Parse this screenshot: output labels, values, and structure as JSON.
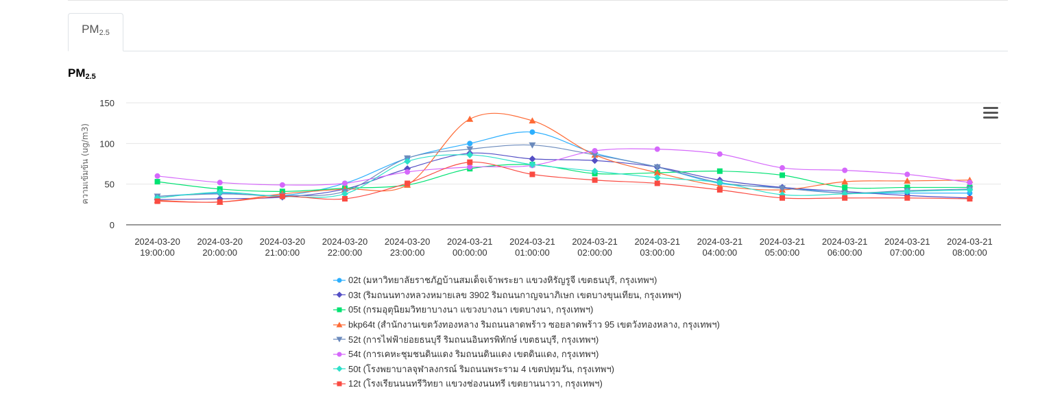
{
  "tabs": [
    {
      "label": "PM",
      "sub": "2.5"
    }
  ],
  "chart_title": {
    "label": "PM",
    "sub": "2.5"
  },
  "chart_data": {
    "type": "line",
    "title": "PM2.5",
    "ylabel": "ความเข้มข้น (ug/m3)",
    "ylim": [
      0,
      150
    ],
    "yticks": [
      0,
      50,
      100,
      150
    ],
    "grid": true,
    "legend": "bottom",
    "categories": [
      [
        "2024-03-20",
        "19:00:00"
      ],
      [
        "2024-03-20",
        "20:00:00"
      ],
      [
        "2024-03-20",
        "21:00:00"
      ],
      [
        "2024-03-20",
        "22:00:00"
      ],
      [
        "2024-03-20",
        "23:00:00"
      ],
      [
        "2024-03-21",
        "00:00:00"
      ],
      [
        "2024-03-21",
        "01:00:00"
      ],
      [
        "2024-03-21",
        "02:00:00"
      ],
      [
        "2024-03-21",
        "03:00:00"
      ],
      [
        "2024-03-21",
        "04:00:00"
      ],
      [
        "2024-03-21",
        "05:00:00"
      ],
      [
        "2024-03-21",
        "06:00:00"
      ],
      [
        "2024-03-21",
        "07:00:00"
      ],
      [
        "2024-03-21",
        "08:00:00"
      ]
    ],
    "series": [
      {
        "name": "02t (มหาวิทยาลัยราชภัฏบ้านสมเด็จเจ้าพระยา แขวงหิรัญรูจี เขตธนบุรี, กรุงเทพฯ)",
        "color": "#2caffe",
        "marker": "circle",
        "values": [
          35,
          39,
          36,
          51,
          82,
          100,
          114,
          88,
          71,
          51,
          46,
          39,
          39,
          39
        ]
      },
      {
        "name": "03t (ริมถนนทางหลวงหมายเลข 3902 ริมถนนกาญจนาภิเษก เขตบางขุนเทียน, กรุงเทพฯ)",
        "color": "#544fc5",
        "marker": "diamond",
        "values": [
          31,
          32,
          34,
          44,
          69,
          88,
          81,
          79,
          71,
          55,
          46,
          41,
          36,
          33
        ]
      },
      {
        "name": "05t (กรมอุตุนิยมวิทยาบางนา แขวงบางนา เขตบางนา, กรุงเทพฯ)",
        "color": "#00e272",
        "marker": "square",
        "values": [
          53,
          44,
          41,
          45,
          49,
          69,
          74,
          63,
          64,
          66,
          61,
          46,
          46,
          46
        ]
      },
      {
        "name": "bkp64t (สำนักงานเขตวังทองหลาง ริมถนนลาดพร้าว ซอยลาดพร้าว 95 เขตวังทองหลาง, กรุงเทพฯ)",
        "color": "#fe6a35",
        "marker": "triangle",
        "values": [
          30,
          28,
          38,
          44,
          49,
          130,
          128,
          86,
          64,
          48,
          43,
          53,
          54,
          55
        ]
      },
      {
        "name": "52t (การไฟฟ้าย่อยธนบุรี ริมถนนอินทรพิทักษ์ เขตธนบุรี, กรุงเทพฯ)",
        "color": "#6b8abc",
        "marker": "triangle-down",
        "values": [
          35,
          38,
          36,
          41,
          82,
          93,
          98,
          86,
          71,
          52,
          45,
          39,
          42,
          44
        ]
      },
      {
        "name": "54t (การเคหะชุมชนดินแดง ริมถนนดินแดง เขตดินแดง, กรุงเทพฯ)",
        "color": "#d568fb",
        "marker": "circle",
        "values": [
          60,
          52,
          49,
          51,
          65,
          71,
          73,
          91,
          93,
          87,
          70,
          67,
          62,
          52
        ]
      },
      {
        "name": "50t (โรงพยาบาลจุฬาลงกรณ์ ริมถนนพระราม 4 เขตปทุมวัน, กรุงเทพฯ)",
        "color": "#2ee0ca",
        "marker": "diamond",
        "values": [
          33,
          40,
          35,
          38,
          78,
          86,
          74,
          66,
          58,
          52,
          37,
          38,
          41,
          43
        ]
      },
      {
        "name": "12t (โรงเรียนนนทรีวิทยา แขวงช่องนนทรี เขตยานนาวา, กรุงเทพฯ)",
        "color": "#fa4b42",
        "marker": "square",
        "values": [
          29,
          28,
          35,
          32,
          51,
          77,
          62,
          55,
          51,
          43,
          33,
          33,
          33,
          32
        ]
      }
    ]
  }
}
